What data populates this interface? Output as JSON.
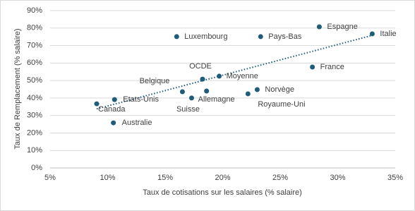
{
  "chart_data": {
    "type": "scatter",
    "x_label": "Taux de cotisations sur les salaires (% salaire)",
    "y_label": "Taux de Remplacement (% salaire)",
    "color": "#1f5c7a",
    "trendline": true,
    "grid": true,
    "series": [
      {
        "names": [
          "Canada",
          "Etats-Unis",
          "Australie",
          "Luxembourg",
          "Belgique",
          "Suisse",
          "OCDE",
          "Allemagne",
          "Moyenne",
          "Royaume-Uni",
          "Norvège",
          "Pays-Bas",
          "France",
          "Espagne",
          "Italie"
        ],
        "x": [
          9.05,
          10.6,
          10.5,
          16.0,
          16.5,
          17.3,
          18.25,
          18.6,
          19.7,
          22.2,
          23.0,
          23.3,
          27.8,
          28.4,
          33.0
        ],
        "y": [
          36.7,
          39.1,
          25.8,
          75.1,
          43.6,
          40.0,
          50.8,
          44.0,
          52.5,
          42.4,
          44.8,
          75.1,
          57.7,
          80.7,
          76.7
        ]
      }
    ],
    "xlim": [
      5,
      35
    ],
    "xticks": [
      {
        "value": 5,
        "label": "5%"
      },
      {
        "value": 10,
        "label": "10%"
      },
      {
        "value": 15,
        "label": "15%"
      },
      {
        "value": 20,
        "label": "20%"
      },
      {
        "value": 25,
        "label": "25%"
      },
      {
        "value": 30,
        "label": "30%"
      },
      {
        "value": 35,
        "label": "35%"
      }
    ],
    "ylim": [
      0,
      90
    ],
    "yticks": [
      {
        "value": 0,
        "label": "0%"
      },
      {
        "value": 10,
        "label": "10%"
      },
      {
        "value": 20,
        "label": "20%"
      },
      {
        "value": 30,
        "label": "30%"
      },
      {
        "value": 40,
        "label": "40%"
      },
      {
        "value": 50,
        "label": "50%"
      },
      {
        "value": 60,
        "label": "60%"
      },
      {
        "value": 70,
        "label": "70%"
      },
      {
        "value": 80,
        "label": "80%"
      },
      {
        "value": 90,
        "label": "90%"
      }
    ]
  }
}
